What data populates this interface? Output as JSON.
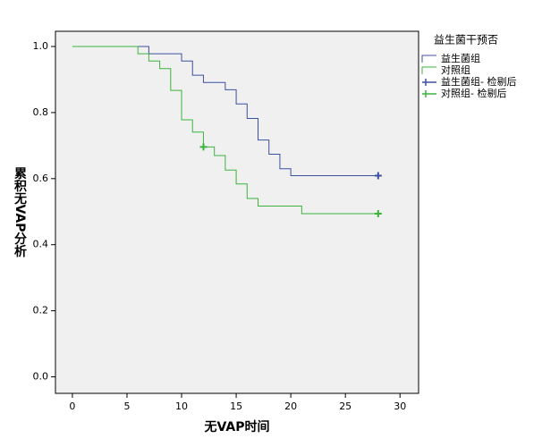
{
  "chart_data": {
    "type": "step",
    "xlabel": "无VAP时间",
    "ylabel": "累积无VAP分析",
    "legend_title": "益生菌干预否",
    "xlim": [
      -1.55,
      31.7
    ],
    "ylim": [
      -0.05,
      1.046
    ],
    "xticks": [
      0,
      5,
      10,
      15,
      20,
      25,
      30
    ],
    "yticks": [
      {
        "value": 0,
        "label": "0.0"
      },
      0.2,
      0.4,
      0.6,
      0.8,
      {
        "value": 1,
        "label": "1.0"
      }
    ],
    "grid": false,
    "legend": "outside-right",
    "series": [
      {
        "name": "益生菌组",
        "color": "#3c50a0",
        "x": [
          0,
          7,
          10,
          11,
          12,
          14,
          15,
          16,
          17,
          18,
          19,
          20,
          28
        ],
        "values": [
          1.0,
          0.978,
          0.956,
          0.913,
          0.891,
          0.869,
          0.826,
          0.782,
          0.717,
          0.674,
          0.63,
          0.609,
          0.609
        ]
      },
      {
        "name": "对照组",
        "color": "#3cb43c",
        "x": [
          0,
          6,
          7,
          8,
          9,
          10,
          11,
          12,
          13,
          14,
          15,
          16,
          17,
          21,
          28
        ],
        "values": [
          1.0,
          0.978,
          0.956,
          0.933,
          0.867,
          0.778,
          0.741,
          0.696,
          0.67,
          0.626,
          0.584,
          0.54,
          0.517,
          0.494,
          0.494
        ]
      },
      {
        "name": "益生菌组- 检剔后",
        "color": "#3c50a0",
        "marker": "+",
        "x": [
          28
        ],
        "values": [
          0.609
        ]
      },
      {
        "name": "对照组- 检剔后",
        "color": "#3cb43c",
        "marker": "+",
        "x": [
          12,
          28
        ],
        "values": [
          0.696,
          0.494
        ]
      }
    ]
  }
}
